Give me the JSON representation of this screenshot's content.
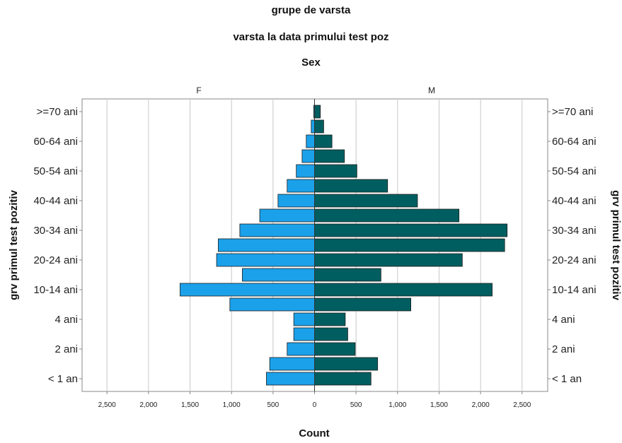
{
  "chart_data": {
    "type": "bar",
    "subtype": "population-pyramid",
    "titles": [
      "grupe de varsta",
      "varsta la data primului test poz",
      "Sex"
    ],
    "xlabel": "Count",
    "ylabel": "grv primul test pozitiv",
    "panel_labels": [
      "F",
      "M"
    ],
    "x_ticks": [
      "2,500",
      "2,000",
      "1,500",
      "1,000",
      "500",
      "0",
      "500",
      "1,000",
      "1,500",
      "2,000",
      "2,500"
    ],
    "xlim": [
      -2800,
      2800
    ],
    "grid": "vertical",
    "y_tick_labels": [
      "< 1 an",
      "2 ani",
      "4 ani",
      "10-14 ani",
      "20-24 ani",
      "30-34 ani",
      "40-44 ani",
      "50-54 ani",
      "60-64 ani",
      ">=70 ani"
    ],
    "categories": [
      "< 1 an",
      "",
      "2 ani",
      "",
      "4 ani",
      "",
      "10-14 ani",
      "",
      "20-24 ani",
      "",
      "30-34 ani",
      "",
      "40-44 ani",
      "",
      "50-54 ani",
      "",
      "60-64 ani",
      "",
      ">=70 ani"
    ],
    "series": [
      {
        "name": "F",
        "color": "#1ba1ea",
        "values": [
          580,
          540,
          330,
          250,
          250,
          1020,
          1620,
          870,
          1180,
          1160,
          900,
          660,
          440,
          330,
          220,
          150,
          100,
          40,
          10
        ]
      },
      {
        "name": "M",
        "color": "#005e60",
        "values": [
          680,
          760,
          490,
          400,
          370,
          1160,
          2140,
          800,
          1780,
          2290,
          2320,
          1740,
          1240,
          880,
          510,
          360,
          210,
          110,
          70
        ]
      }
    ]
  }
}
